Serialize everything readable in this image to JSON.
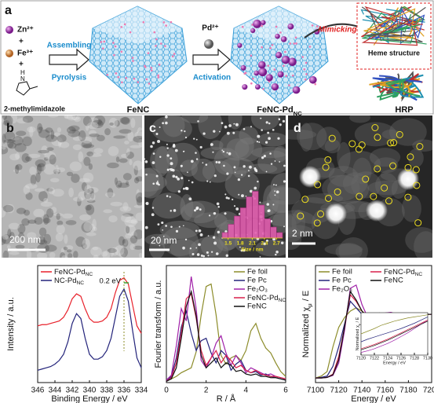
{
  "panels": [
    "a",
    "b",
    "c",
    "d"
  ],
  "schematic": {
    "reagents": [
      "Zn²⁺",
      "+",
      "Fe³⁺",
      "+"
    ],
    "imidazole_atoms": [
      "H",
      "N"
    ],
    "precursor": "2-methylimidazole",
    "step1": [
      "Assembling",
      "Pyrolysis"
    ],
    "product1": "FeNC",
    "metal": "Pd²⁺",
    "step2": "Activation",
    "product2": [
      "FeNC-Pd",
      "NC"
    ],
    "mimic": "Mimicking",
    "inset": "Heme structure",
    "enzyme": "HRP"
  },
  "scale_bars": [
    "200 nm",
    "20 nm",
    "2 nm"
  ],
  "chart_data": [
    {
      "type": "histogram",
      "bins": [
        1.35,
        1.5,
        1.65,
        1.8,
        1.95,
        2.1,
        2.25,
        2.4,
        2.55,
        2.7,
        2.85
      ],
      "values": [
        2,
        5,
        8,
        11,
        15,
        17,
        12,
        7,
        4,
        2
      ],
      "color": "#e35fb0",
      "xlim": [
        1.35,
        2.85
      ],
      "ylim": [
        0,
        18
      ],
      "xticks": [
        1.5,
        1.8,
        2.1,
        2.4,
        2.7
      ],
      "xlabel": "Size / nm"
    },
    {
      "type": "line",
      "panel": "e",
      "x": [
        346,
        345.5,
        345,
        344.5,
        344,
        343.5,
        343,
        342.5,
        342,
        341.5,
        341,
        340.5,
        340,
        339.5,
        339,
        338.5,
        338,
        337.5,
        337,
        336.5,
        336,
        335.5,
        335,
        334.5,
        334
      ],
      "xlim": [
        346,
        334
      ],
      "ylim": [
        1,
        10.5
      ],
      "xticks": [
        346,
        344,
        342,
        340,
        338,
        336,
        334
      ],
      "xlabel": "Binding Energy / eV",
      "ylabel": "Intensity / a.u.",
      "legend": "upper left",
      "annotations": [
        "0.2 eV"
      ],
      "series": [
        {
          "name": [
            "FeNC-Pd",
            "NC"
          ],
          "color": "#e8202a",
          "values": [
            5.6,
            5.7,
            5.7,
            5.8,
            5.9,
            6.0,
            6.3,
            6.9,
            7.8,
            8.2,
            8.0,
            7.0,
            6.2,
            5.9,
            5.9,
            6.0,
            6.3,
            7.0,
            8.3,
            9.3,
            9.5,
            9.0,
            7.3,
            5.6,
            5.0
          ]
        },
        {
          "name": [
            "NC-Pd",
            "NC"
          ],
          "color": "#23237a",
          "values": [
            2.0,
            2.1,
            2.2,
            2.3,
            2.5,
            2.8,
            3.3,
            4.3,
            5.8,
            6.6,
            6.2,
            4.6,
            3.3,
            2.9,
            2.9,
            3.1,
            3.6,
            4.6,
            6.3,
            8.0,
            8.6,
            7.6,
            5.2,
            3.0,
            2.2
          ]
        }
      ]
    },
    {
      "type": "line",
      "panel": "f",
      "x": [
        0,
        0.25,
        0.5,
        0.75,
        1,
        1.25,
        1.5,
        1.75,
        2,
        2.25,
        2.5,
        2.75,
        3,
        3.25,
        3.5,
        3.75,
        4,
        4.25,
        4.5,
        4.75,
        5,
        5.25,
        5.5,
        5.75,
        6
      ],
      "xlim": [
        0,
        6
      ],
      "ylim": [
        0,
        9.5
      ],
      "xticks": [
        0,
        2,
        4,
        6
      ],
      "xlabel": "R / Å",
      "ylabel": "Fourier transform / a.u.",
      "legend": "upper right",
      "series": [
        {
          "name": "Fe foil",
          "color": "#8c8c2a",
          "values": [
            0.2,
            0.3,
            0.5,
            0.8,
            1.0,
            1.2,
            2.5,
            5.5,
            7.8,
            8.0,
            5.5,
            2.2,
            1.5,
            2.0,
            2.2,
            1.8,
            2.6,
            4.2,
            4.8,
            3.6,
            2.8,
            2.4,
            1.6,
            0.9,
            0.5
          ]
        },
        {
          "name": "Fe Pc",
          "color": "#23237a",
          "values": [
            0.1,
            0.5,
            2.0,
            4.5,
            5.8,
            4.0,
            2.6,
            3.4,
            3.6,
            2.4,
            1.6,
            2.6,
            2.2,
            1.0,
            1.5,
            1.8,
            1.0,
            0.8,
            0.9,
            0.6,
            0.7,
            0.5,
            0.4,
            0.3,
            0.2
          ]
        },
        {
          "name": "Fe₂O₃",
          "color": "#a020a8",
          "values": [
            0.2,
            0.6,
            3.0,
            6.0,
            5.0,
            8.6,
            6.0,
            1.8,
            1.2,
            2.0,
            3.2,
            3.8,
            2.4,
            1.4,
            2.2,
            1.6,
            0.8,
            1.2,
            1.0,
            0.8,
            0.6,
            0.7,
            0.5,
            0.4,
            0.3
          ]
        },
        {
          "name": [
            "FeNC-Pd",
            "NC"
          ],
          "color": "#d8204a",
          "values": [
            0.1,
            0.4,
            1.6,
            4.0,
            6.8,
            7.2,
            5.2,
            2.6,
            1.4,
            2.0,
            2.6,
            1.6,
            2.2,
            1.8,
            1.2,
            1.4,
            1.0,
            0.8,
            1.0,
            0.7,
            0.6,
            0.5,
            0.5,
            0.4,
            0.3
          ]
        },
        {
          "name": "FeNC",
          "color": "#111111",
          "values": [
            0.1,
            0.3,
            1.2,
            3.6,
            6.2,
            7.4,
            5.4,
            2.2,
            1.2,
            1.6,
            2.0,
            1.2,
            1.6,
            1.4,
            0.9,
            1.0,
            0.7,
            0.6,
            0.7,
            0.5,
            0.5,
            0.4,
            0.4,
            0.3,
            0.2
          ]
        }
      ]
    },
    {
      "type": "line",
      "panel": "g",
      "x": [
        7100,
        7105,
        7110,
        7115,
        7120,
        7125,
        7130,
        7135,
        7140,
        7145,
        7150,
        7155,
        7160,
        7165,
        7170,
        7175,
        7180,
        7185,
        7190,
        7195,
        7200
      ],
      "xlim": [
        7100,
        7200
      ],
      "ylim": [
        -0.05,
        1.75
      ],
      "xticks": [
        7100,
        7120,
        7140,
        7160,
        7180,
        7200
      ],
      "xlabel": "Energy / eV",
      "ylabel": [
        "Normalized χ",
        "μ",
        " / E"
      ],
      "legend": "upper left",
      "series": [
        {
          "name": "Fe foil",
          "color": "#8c8c2a",
          "values": [
            0.02,
            0.05,
            0.12,
            0.5,
            0.8,
            0.95,
            1.05,
            1.1,
            1.05,
            0.98,
            1.0,
            1.02,
            1.0,
            0.98,
            0.99,
            1.0,
            1.01,
            1.0,
            0.99,
            1.0,
            1.0
          ]
        },
        {
          "name": "Fe Pc",
          "color": "#23237a",
          "values": [
            0.02,
            0.03,
            0.05,
            0.2,
            0.5,
            0.85,
            1.2,
            1.1,
            1.0,
            0.95,
            1.0,
            1.02,
            1.0,
            0.98,
            1.0,
            1.01,
            1.0,
            0.99,
            1.0,
            1.0,
            1.0
          ]
        },
        {
          "name": "Fe₂O₃",
          "color": "#a020a8",
          "values": [
            0.02,
            0.02,
            0.03,
            0.06,
            0.25,
            0.75,
            1.4,
            1.45,
            1.15,
            0.95,
            0.9,
            0.98,
            1.02,
            1.03,
            1.0,
            0.98,
            0.99,
            1.0,
            1.01,
            1.0,
            1.0
          ]
        },
        {
          "name": [
            "FeNC-Pd",
            "NC"
          ],
          "color": "#d8204a",
          "values": [
            0.02,
            0.02,
            0.03,
            0.08,
            0.35,
            0.8,
            1.3,
            1.2,
            1.05,
            0.95,
            0.95,
            1.0,
            1.0,
            1.01,
            1.0,
            0.99,
            1.0,
            1.0,
            1.0,
            1.0,
            1.0
          ]
        },
        {
          "name": "FeNC",
          "color": "#111111",
          "values": [
            0.02,
            0.02,
            0.03,
            0.07,
            0.3,
            0.8,
            1.35,
            1.22,
            1.05,
            0.94,
            0.95,
            1.0,
            1.0,
            1.01,
            1.0,
            0.99,
            1.0,
            1.0,
            1.0,
            1.0,
            1.0
          ]
        }
      ]
    },
    {
      "type": "line",
      "x": [
        7120,
        7121,
        7122,
        7123,
        7124,
        7125,
        7126,
        7127,
        7128,
        7129,
        7130
      ],
      "xlim": [
        7120,
        7130
      ],
      "ylim": [
        0.1,
        0.9
      ],
      "xticks": [
        7120,
        7122,
        7124,
        7126,
        7128,
        7130
      ],
      "xlabel": "Energy / eV",
      "ylabel": [
        "Normalized χ",
        "μ",
        " / E"
      ],
      "series": [
        {
          "color": "#8c8c2a",
          "values": [
            0.5,
            0.55,
            0.6,
            0.66,
            0.7,
            0.74,
            0.77,
            0.8,
            0.82,
            0.84,
            0.86
          ]
        },
        {
          "color": "#23237a",
          "values": [
            0.35,
            0.4,
            0.44,
            0.48,
            0.52,
            0.56,
            0.6,
            0.65,
            0.7,
            0.76,
            0.82
          ]
        },
        {
          "color": "#a020a8",
          "values": [
            0.15,
            0.18,
            0.22,
            0.27,
            0.32,
            0.38,
            0.45,
            0.52,
            0.6,
            0.68,
            0.76
          ]
        },
        {
          "color": "#d8204a",
          "values": [
            0.22,
            0.26,
            0.3,
            0.35,
            0.4,
            0.46,
            0.52,
            0.58,
            0.64,
            0.7,
            0.76
          ]
        },
        {
          "color": "#111111",
          "values": [
            0.2,
            0.24,
            0.28,
            0.33,
            0.38,
            0.44,
            0.5,
            0.56,
            0.62,
            0.68,
            0.74
          ]
        }
      ]
    }
  ]
}
